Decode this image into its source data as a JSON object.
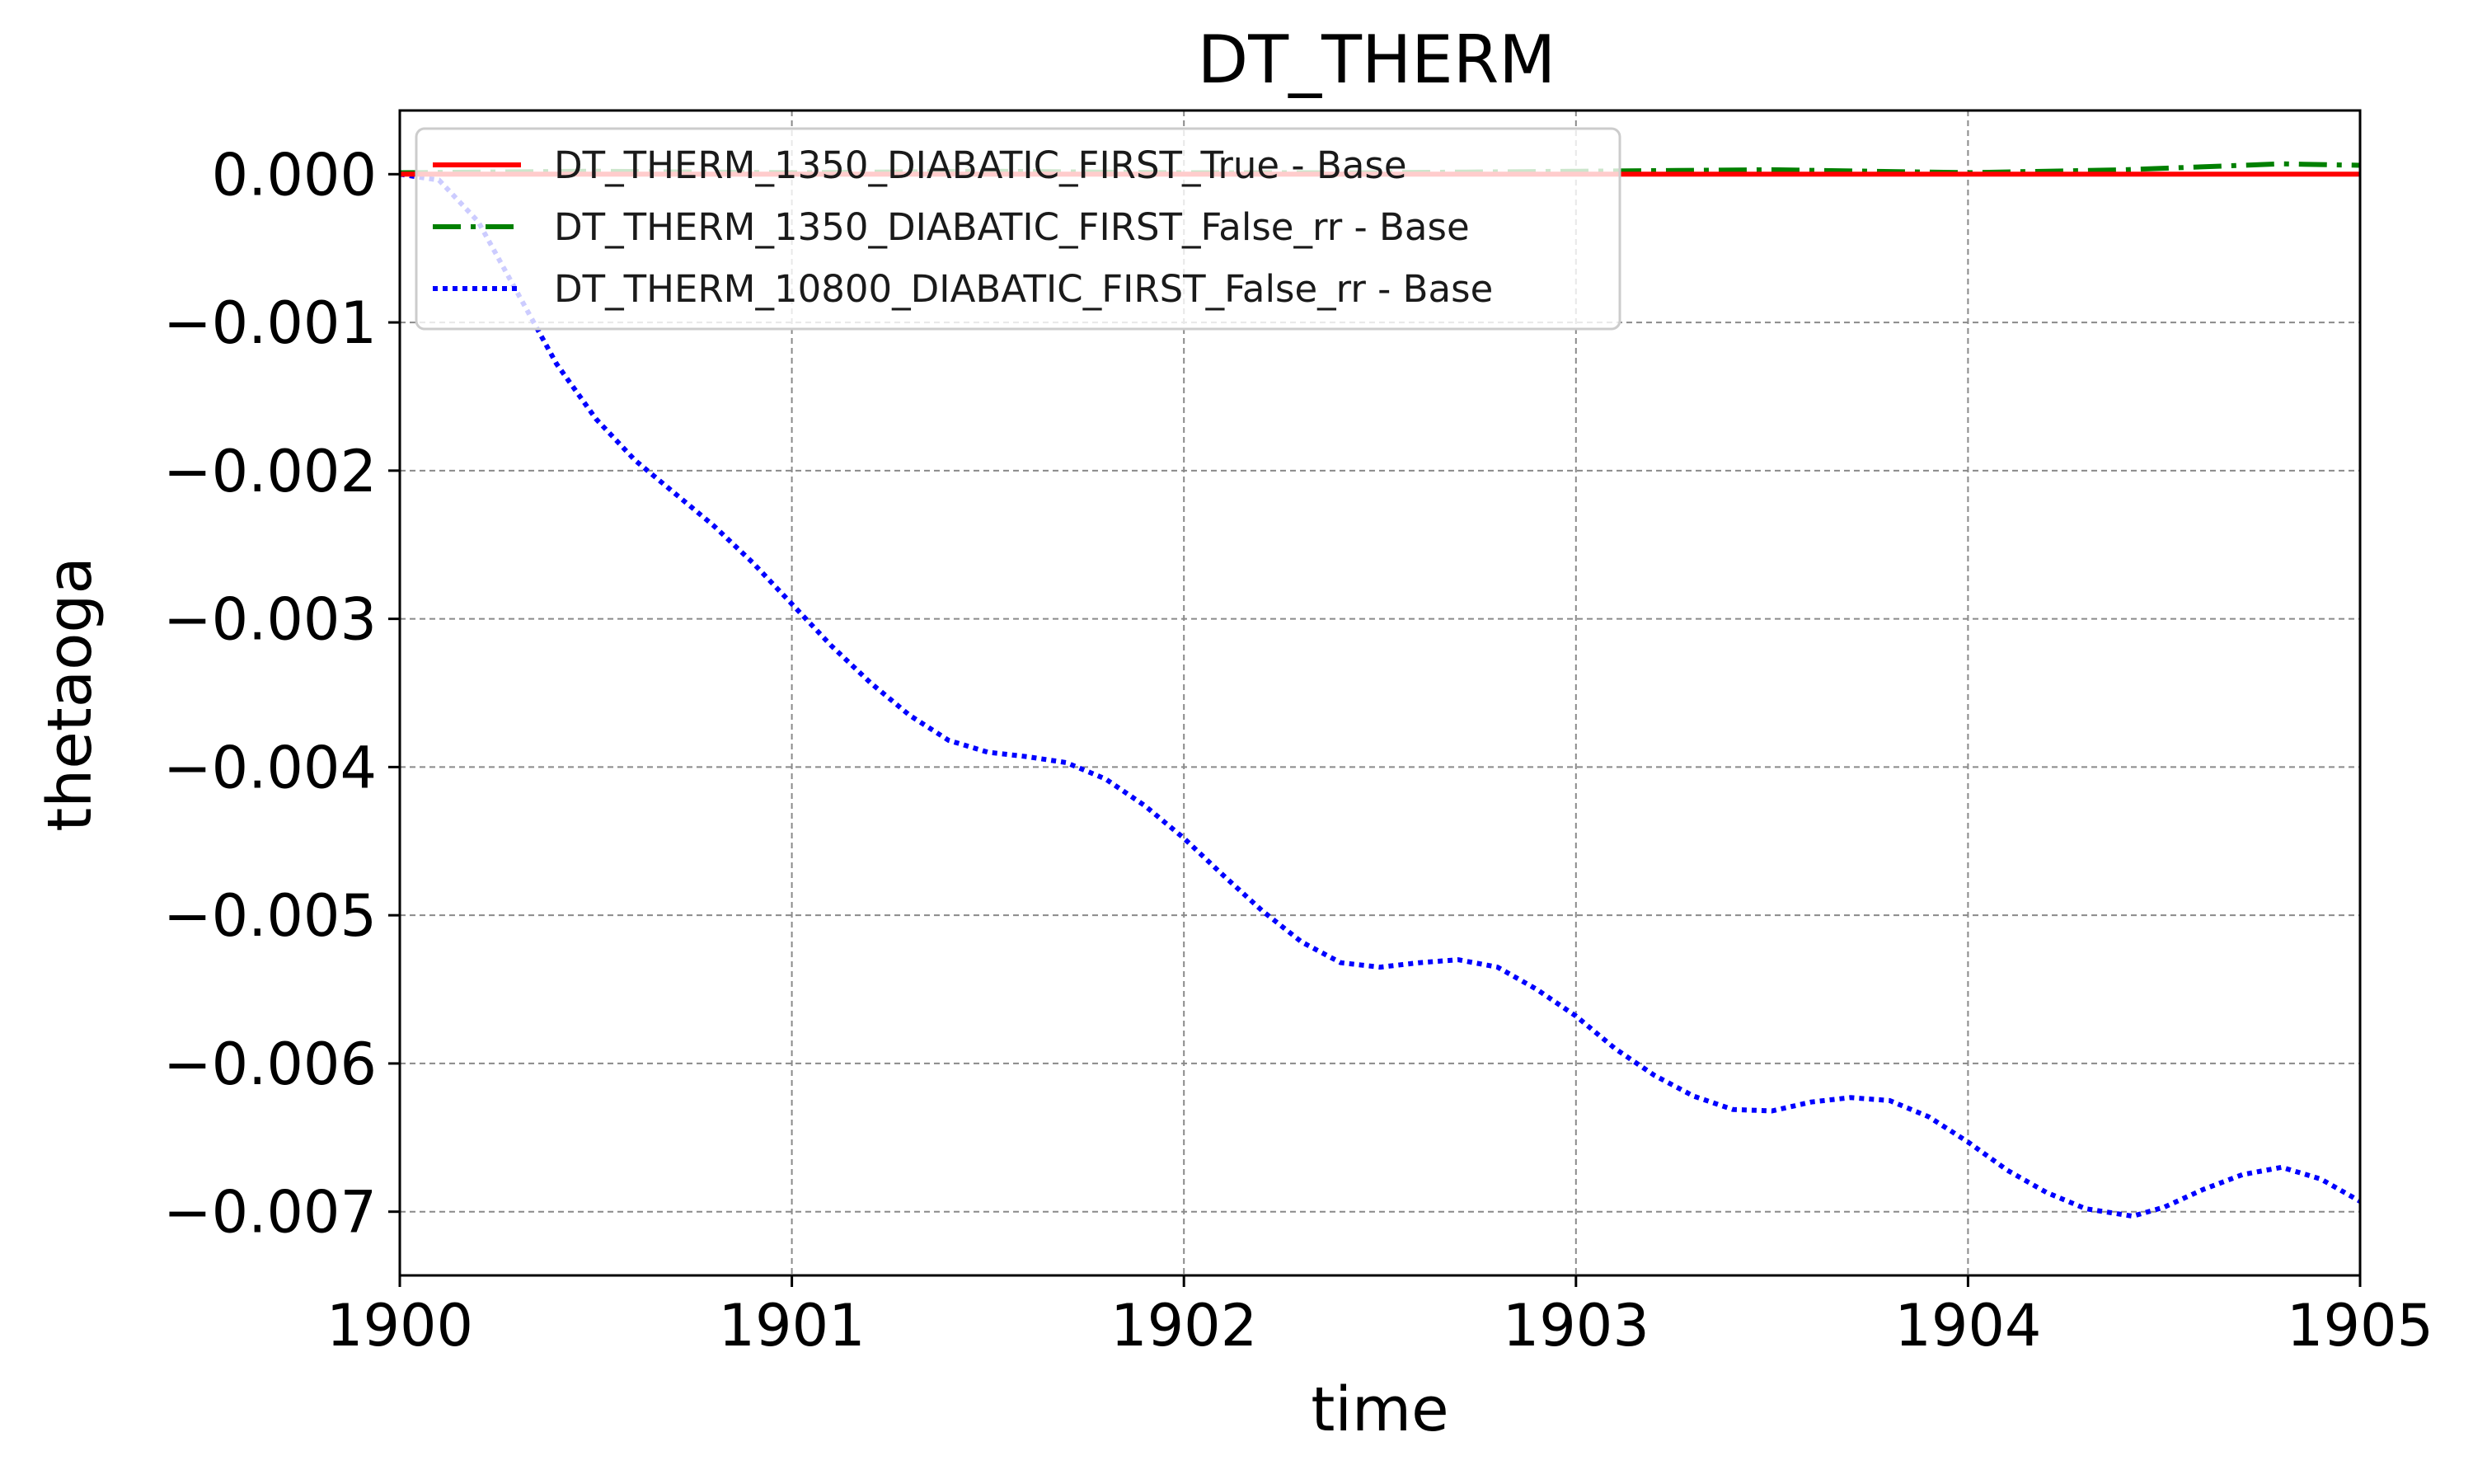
{
  "chart_data": {
    "type": "line",
    "title": "DT_THERM",
    "xlabel": "time",
    "ylabel": "thetaoga",
    "xlim": [
      1900,
      1905
    ],
    "ylim": [
      -0.00743,
      0.00043
    ],
    "x_ticks": [
      1900,
      1901,
      1902,
      1903,
      1904,
      1905
    ],
    "x_tick_labels": [
      "1900",
      "1901",
      "1902",
      "1903",
      "1904",
      "1905"
    ],
    "y_ticks": [
      0,
      -0.001,
      -0.002,
      -0.003,
      -0.004,
      -0.005,
      -0.006,
      -0.007
    ],
    "y_tick_labels": [
      "0.000",
      "−0.001",
      "−0.002",
      "−0.003",
      "−0.004",
      "−0.005",
      "−0.006",
      "−0.007"
    ],
    "grid": true,
    "legend_position": "top-left",
    "series": [
      {
        "name": "DT_THERM_1350_DIABATIC_FIRST_True - Base",
        "color": "#ff0000",
        "style": "solid",
        "x": [
          1900,
          1901,
          1902,
          1903,
          1904,
          1905
        ],
        "y": [
          0,
          0,
          0,
          0,
          0,
          0
        ]
      },
      {
        "name": "DT_THERM_1350_DIABATIC_FIRST_False_rr - Base",
        "color": "#008000",
        "style": "dashdot",
        "x": [
          1900,
          1900.5,
          1901,
          1901.5,
          1902,
          1902.5,
          1903,
          1903.5,
          1904,
          1904.4,
          1904.8,
          1905
        ],
        "y": [
          1e-05,
          2e-05,
          1e-05,
          2e-05,
          1e-05,
          1e-05,
          2e-05,
          3e-05,
          1e-05,
          3e-05,
          7e-05,
          6e-05
        ]
      },
      {
        "name": "DT_THERM_10800_DIABATIC_FIRST_False_rr - Base",
        "color": "#0000ff",
        "style": "dotted",
        "x": [
          1900,
          1900.1,
          1900.2,
          1900.3,
          1900.4,
          1900.5,
          1900.6,
          1900.7,
          1900.8,
          1900.9,
          1901,
          1901.1,
          1901.2,
          1901.3,
          1901.4,
          1901.5,
          1901.6,
          1901.7,
          1901.8,
          1901.9,
          1902,
          1902.1,
          1902.2,
          1902.3,
          1902.4,
          1902.5,
          1902.6,
          1902.7,
          1902.8,
          1902.9,
          1903,
          1903.1,
          1903.2,
          1903.3,
          1903.4,
          1903.5,
          1903.6,
          1903.7,
          1903.8,
          1903.9,
          1904,
          1904.1,
          1904.2,
          1904.3,
          1904.42,
          1904.5,
          1904.6,
          1904.7,
          1904.8,
          1904.9,
          1905
        ],
        "y": [
          0,
          -4e-05,
          -0.00032,
          -0.0008,
          -0.00128,
          -0.00165,
          -0.00193,
          -0.00215,
          -0.00237,
          -0.00262,
          -0.0029,
          -0.00318,
          -0.00343,
          -0.00365,
          -0.00382,
          -0.0039,
          -0.00393,
          -0.00397,
          -0.00408,
          -0.00426,
          -0.00448,
          -0.00473,
          -0.00497,
          -0.00518,
          -0.00532,
          -0.00535,
          -0.00532,
          -0.0053,
          -0.00535,
          -0.0055,
          -0.00568,
          -0.0059,
          -0.00608,
          -0.00622,
          -0.00631,
          -0.00632,
          -0.00626,
          -0.00623,
          -0.00625,
          -0.00636,
          -0.00653,
          -0.00672,
          -0.00687,
          -0.00698,
          -0.00703,
          -0.00697,
          -0.00685,
          -0.00675,
          -0.0067,
          -0.00678,
          -0.00693
        ]
      }
    ]
  }
}
